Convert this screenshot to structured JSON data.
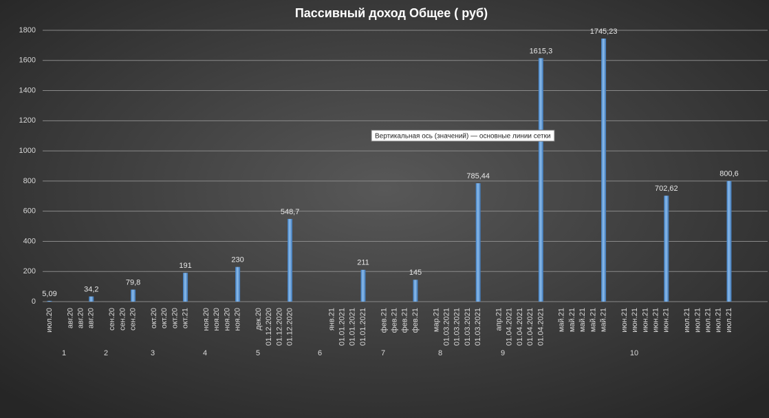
{
  "chart_data": {
    "type": "bar",
    "title": "Пассивный доход Общее ( руб)",
    "categories": [
      "июл.20",
      null,
      "авг.20",
      "авг.20",
      "авг.20",
      null,
      "сен.20",
      "сен.20",
      "сен.20",
      null,
      "окт.20",
      "окт.20",
      "окт.20",
      "окт.21",
      null,
      "ноя.20",
      "ноя.20",
      "ноя.20",
      "ноя.20",
      null,
      "дек.20",
      "01.12.2020",
      "01.12.2020",
      "01.12.2020",
      null,
      null,
      null,
      "янв.21",
      "01.01.2021",
      "01.01.2021",
      "01.01.2021",
      null,
      "фев.21",
      "фев.21",
      "фев.21",
      "фев.21",
      null,
      "мар.21",
      "01.03.2021",
      "01.03.2021",
      "01.03.2021",
      "01.03.2021",
      null,
      "апр.21",
      "01.04.2021",
      "01.04.2021",
      "01.04.2021",
      "01.04.2021",
      null,
      "май.21",
      "май.21",
      "май.21",
      "май.21",
      "май.21",
      null,
      "июн.21",
      "июн.21",
      "июн.21",
      "июн.21",
      "июн.21",
      null,
      "июл.21",
      "июл.21",
      "июл.21",
      "июл.21",
      "июл.21"
    ],
    "values": [
      5.09,
      null,
      null,
      null,
      34.2,
      null,
      null,
      null,
      79.8,
      null,
      null,
      null,
      null,
      191,
      null,
      null,
      null,
      null,
      230,
      null,
      null,
      null,
      null,
      548.7,
      null,
      null,
      null,
      null,
      null,
      null,
      211,
      null,
      null,
      null,
      null,
      145,
      null,
      null,
      null,
      null,
      null,
      785.44,
      null,
      null,
      null,
      null,
      null,
      1615.3,
      null,
      null,
      null,
      null,
      null,
      1745.23,
      null,
      null,
      null,
      null,
      null,
      702.62,
      null,
      null,
      null,
      null,
      null,
      800.6
    ],
    "value_labels": [
      "5,09",
      null,
      null,
      null,
      "34,2",
      null,
      null,
      null,
      "79,8",
      null,
      null,
      null,
      null,
      "191",
      null,
      null,
      null,
      null,
      "230",
      null,
      null,
      null,
      null,
      "548,7",
      null,
      null,
      null,
      null,
      null,
      null,
      "211",
      null,
      null,
      null,
      null,
      "145",
      null,
      null,
      null,
      null,
      null,
      "785,44",
      null,
      null,
      null,
      null,
      null,
      "1615,3",
      null,
      null,
      null,
      null,
      null,
      "1745,23",
      null,
      null,
      null,
      null,
      null,
      "702,62",
      null,
      null,
      null,
      null,
      null,
      "800,6"
    ],
    "groups": [
      "1",
      "2",
      "3",
      "4",
      "5",
      "6",
      "7",
      "8",
      "9",
      "10"
    ],
    "color": "#5b9bd5",
    "ylim": [
      0,
      1800
    ],
    "yticks": [
      0,
      200,
      400,
      600,
      800,
      1000,
      1200,
      1400,
      1600,
      1800
    ],
    "grid": true,
    "tooltip": "Вертикальная ось (значений)   — основные линии сетки"
  }
}
